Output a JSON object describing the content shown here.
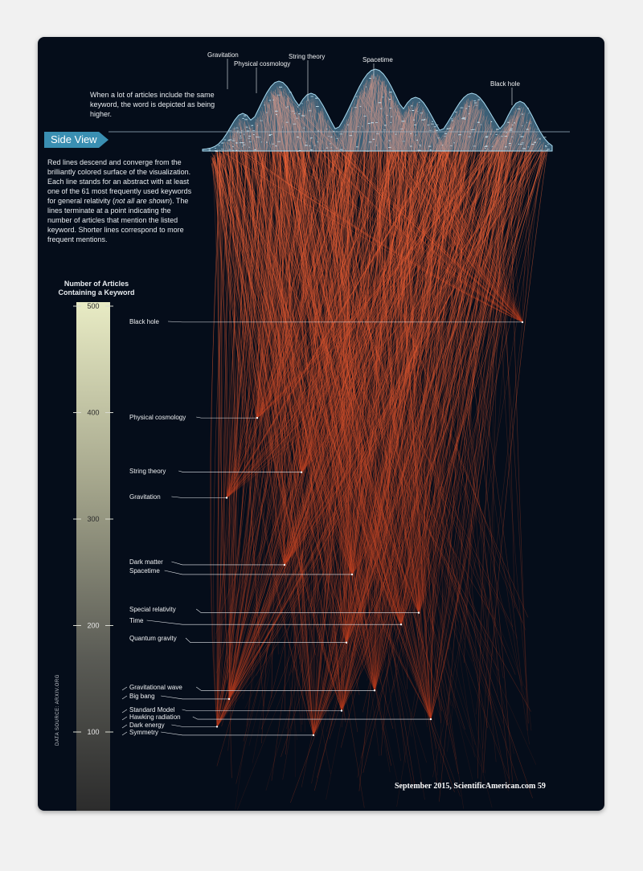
{
  "intro_text": "When a lot of articles include the same keyword, the word is depicted as being higher.",
  "section_tab": "Side View",
  "description_parts": [
    "Red lines descend and converge from the brilliantly colored surface of the visualization. Each line stands for an abstract with at least one of the 61 most frequently used keywords for general relativity (",
    "not all are shown",
    "). The lines terminate at a point indicating the number of articles that mention the listed keyword. Shorter lines correspond to more frequent mentions."
  ],
  "footer": "September 2015, ScientificAmerican.com  59",
  "source_note": "DATA SOURCE: ARXIV.ORG",
  "colors": {
    "background": "#050d1a",
    "lines": "#e8552b",
    "surface": "#7fc4e6",
    "tab": "#3a8fb2"
  },
  "top_labels": [
    "Gravitation",
    "Physical cosmology",
    "String theory",
    "Spacetime",
    "Black hole"
  ],
  "chart_data": {
    "type": "scatter",
    "title": "Number of Articles Containing a Keyword",
    "ylim": [
      40,
      500
    ],
    "yticks": [
      100,
      200,
      300,
      400,
      500
    ],
    "grid": false,
    "keywords": [
      {
        "name": "Black hole",
        "count": 485
      },
      {
        "name": "Physical cosmology",
        "count": 395
      },
      {
        "name": "String theory",
        "count": 344
      },
      {
        "name": "Gravitation",
        "count": 320
      },
      {
        "name": "Dark matter",
        "count": 257
      },
      {
        "name": "Spacetime",
        "count": 248
      },
      {
        "name": "Special relativity",
        "count": 212
      },
      {
        "name": "Time",
        "count": 201
      },
      {
        "name": "Quantum gravity",
        "count": 184
      },
      {
        "name": "Gravitational wave",
        "count": 139
      },
      {
        "name": "Big bang",
        "count": 131
      },
      {
        "name": "Standard Model",
        "count": 120
      },
      {
        "name": "Hawking radiation",
        "count": 112
      },
      {
        "name": "Dark energy",
        "count": 105
      },
      {
        "name": "Symmetry",
        "count": 97
      }
    ]
  }
}
